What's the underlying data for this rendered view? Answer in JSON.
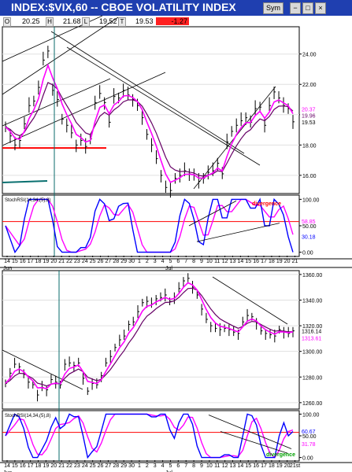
{
  "window": {
    "title": "INDEX:$VIX,60 -- CBOE VOLATILITY INDEX",
    "buttons": [
      "Sym",
      "−",
      "□",
      "×"
    ]
  },
  "quote_bar": {
    "labels": [
      "O",
      "H",
      "L",
      "T"
    ],
    "open": "20.25",
    "high": "21.68",
    "low": "19.52",
    "last": "19.53",
    "change": "-1.27",
    "change_color": "#ff2020"
  },
  "colors": {
    "background": "#ffffff",
    "titlebar": "#1f3fb0",
    "price": "#000000",
    "ma_fast": "#ff00ff",
    "ma_slow": "#660066",
    "support": "#ff0000",
    "stoch_k": "#0000ff",
    "stoch_d": "#ff00ff",
    "marker": "#0a6b6b",
    "teal_line": "#0a7070",
    "annotation_red": "#ff0000",
    "annotation_green": "#00a000"
  },
  "chart_data": [
    {
      "type": "line",
      "title": "INDEX:$VIX,60 -- CBOE VOLATILITY INDEX",
      "series": [],
      "x": [
        0,
        1,
        2,
        3,
        4,
        5,
        6,
        7,
        8,
        9,
        10,
        11,
        12,
        13,
        14,
        15,
        16,
        17,
        18,
        19,
        20,
        21,
        22,
        23,
        24,
        25,
        26,
        27,
        28,
        29,
        30,
        31,
        32,
        33,
        34,
        35,
        36,
        37,
        38,
        39,
        40,
        41,
        42,
        43,
        44,
        45,
        46,
        47,
        48,
        49
      ],
      "y": [
        19.2,
        18.6,
        18.0,
        18.3,
        19.4,
        20.6,
        20.9,
        21.8,
        23.6,
        24.2,
        21.6,
        21.0,
        19.7,
        19.3,
        18.8,
        18.0,
        18.3,
        17.9,
        18.4,
        20.8,
        21.4,
        20.8,
        19.5,
        21.2,
        21.1,
        21.6,
        21.3,
        21.0,
        20.6,
        19.8,
        18.7,
        18.0,
        17.1,
        16.0,
        15.2,
        15.0,
        15.8,
        16.0,
        16.3,
        16.1,
        16.0,
        15.6,
        15.8,
        16.2,
        16.3,
        16.8,
        16.1,
        18.2,
        18.9,
        19.3
      ],
      "y2_part": [
        19.6,
        19.8,
        19.5,
        20.4,
        20.5,
        19.3,
        20.6,
        21.5,
        21.1,
        20.6,
        20.4,
        19.53
      ],
      "ylim": [
        14.8,
        25.8
      ],
      "yticks": [
        "24.00",
        "22.00",
        "20.00",
        "18.00",
        "16.00"
      ],
      "last_value_labels": [
        "20.37",
        "19.96",
        "19.53"
      ],
      "support_level": 17.8,
      "annotations": []
    },
    {
      "type": "line",
      "title": "StochRSI(14,34,(5),8)",
      "series": [],
      "yticks": [
        "100.00",
        "50.00",
        "0.00"
      ],
      "reference_level": 58,
      "ylim": [
        -8,
        108
      ],
      "last_value_labels": [
        "58.85",
        "30.18"
      ],
      "annotations": [
        "divergence"
      ]
    },
    {
      "type": "line",
      "title": "",
      "series": [],
      "x": [
        0,
        1,
        2,
        3,
        4,
        5,
        6,
        7,
        8,
        9,
        10,
        11,
        12,
        13,
        14,
        15,
        16,
        17,
        18,
        19,
        20,
        21,
        22,
        23,
        24,
        25,
        26,
        27,
        28,
        29,
        30,
        31,
        32,
        33,
        34,
        35,
        36,
        37,
        38,
        39,
        40,
        41,
        42,
        43,
        44,
        45,
        46,
        47,
        48,
        49,
        50,
        51,
        52,
        53,
        54,
        55,
        56,
        57,
        58,
        59,
        60,
        61,
        62,
        63
      ],
      "y": [
        1275,
        1283,
        1290,
        1288,
        1282,
        1276,
        1274,
        1266,
        1272,
        1270,
        1278,
        1276,
        1274,
        1290,
        1291,
        1289,
        1291,
        1279,
        1269,
        1275,
        1274,
        1281,
        1291,
        1296,
        1303,
        1309,
        1312,
        1321,
        1323,
        1331,
        1338,
        1339,
        1337,
        1341,
        1342,
        1344,
        1339,
        1342,
        1349,
        1355,
        1357,
        1350,
        1344,
        1333,
        1325,
        1320,
        1318,
        1317,
        1318,
        1317,
        1315,
        1314,
        1323,
        1328,
        1327,
        1322,
        1316,
        1314,
        1313,
        1312,
        1317,
        1315,
        1314,
        1316
      ],
      "ylim": [
        1255,
        1363
      ],
      "yticks": [
        "1360.00",
        "1340.00",
        "1320.00",
        "1300.00",
        "1280.00",
        "1260.00"
      ],
      "last_value_labels": [
        "1316.14",
        "1313.61"
      ],
      "annotations": []
    },
    {
      "type": "line",
      "title": "StochRSI(14,34,(5),8)",
      "series": [],
      "yticks": [
        "100.00",
        "50.00",
        "0.00"
      ],
      "reference_level": 58,
      "ylim": [
        -8,
        108
      ],
      "last_value_labels": [
        "60.67",
        "31.78"
      ],
      "annotations": [
        "divergence"
      ]
    }
  ],
  "x_axis_top": {
    "labels": [
      "14",
      "15",
      "16",
      "17",
      "18",
      "19",
      "20",
      "21",
      "22",
      "23",
      "24",
      "25",
      "26",
      "27",
      "28",
      "29",
      "30",
      "1",
      "2",
      "3",
      "4",
      "5",
      "6",
      "7",
      "8",
      "9",
      "10",
      "11",
      "12",
      "13",
      "14",
      "15",
      "16",
      "17",
      "18",
      "19",
      "20",
      "21"
    ],
    "month_labels": [
      "Jun",
      "Jul"
    ]
  },
  "x_axis_bottom": {
    "labels": [
      "14",
      "15",
      "16",
      "17",
      "18",
      "19",
      "20",
      "21",
      "22",
      "23",
      "24",
      "25",
      "26",
      "27",
      "28",
      "29",
      "30",
      "1",
      "2",
      "3",
      "4",
      "5",
      "6",
      "7",
      "8",
      "9",
      "10",
      "11",
      "12",
      "13",
      "14",
      "15",
      "16",
      "17",
      "18",
      "19",
      "20",
      "21st"
    ],
    "month_labels": [
      "Jun",
      "Jul"
    ]
  }
}
